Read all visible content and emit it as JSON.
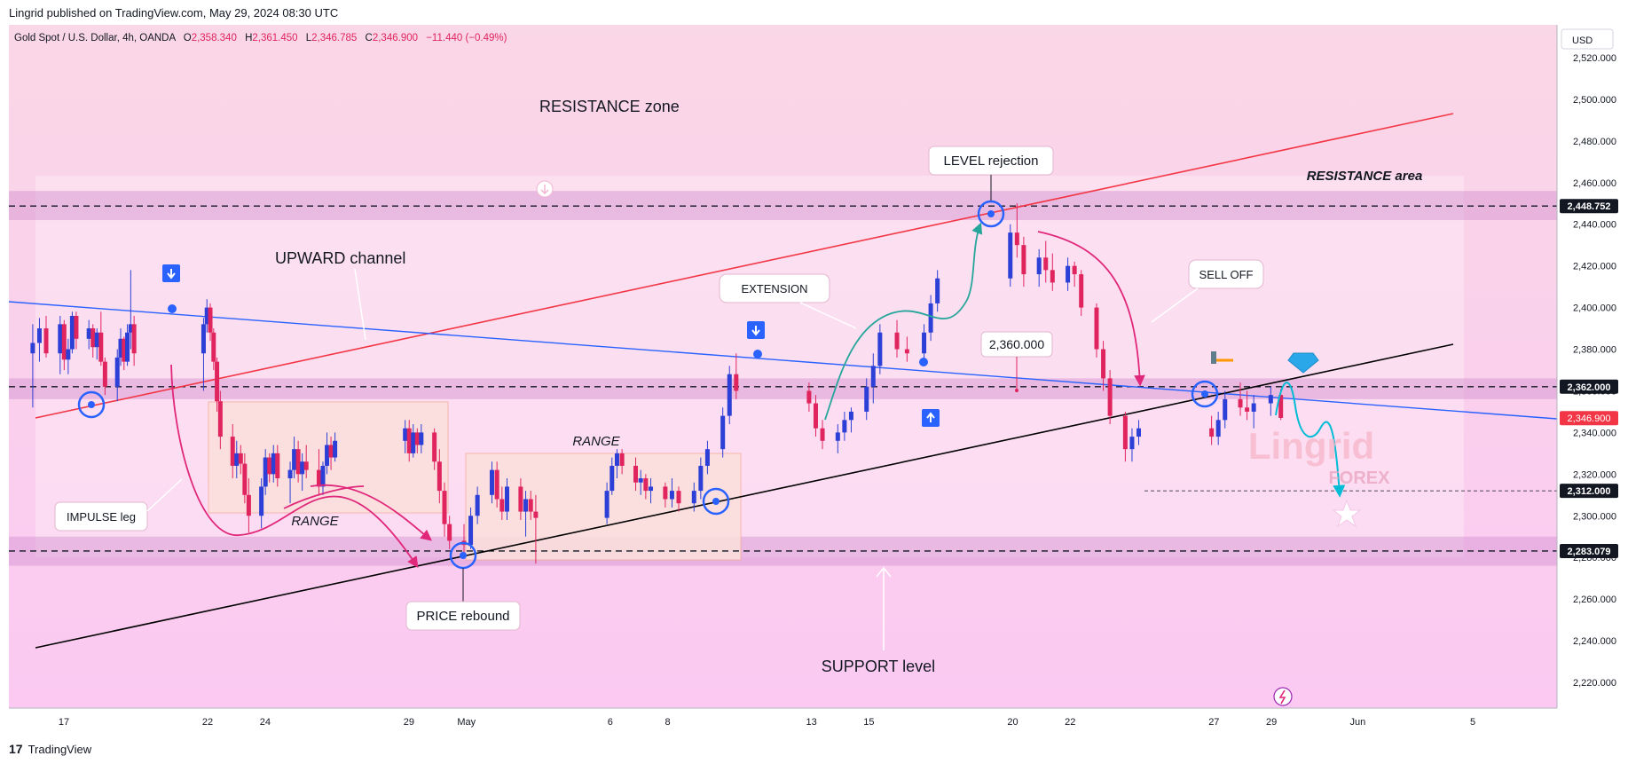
{
  "header": {
    "published": "Lingrid published on TradingView.com, May 29, 2024 08:30 UTC"
  },
  "footer": {
    "logo_glyph": "17",
    "brand": "TradingView"
  },
  "symbol": {
    "name": "Gold Spot / U.S. Dollar, 4h, OANDA",
    "open_label": "O",
    "open": "2,358.340",
    "high_label": "H",
    "high": "2,361.450",
    "low_label": "L",
    "low": "2,346.785",
    "close_label": "C",
    "close": "2,346.900",
    "change": "−11.440 (−0.49%)"
  },
  "currency": "USD",
  "watermark": {
    "brand": "Lingrid",
    "sub": "FOREX"
  },
  "colors": {
    "bull": "#2c3fd6",
    "bear": "#e0245e",
    "resistance_line": "#f23645",
    "support_line": "#000000",
    "channel_line": "#2962ff",
    "zone": "#d99bd6",
    "price_tag_bg": "#f23645",
    "level_tag_bg": "#131722",
    "arrow_pink": "#e0277a",
    "arrow_green": "#26a69a",
    "arrow_cyan": "#00bcd4"
  },
  "chart_data": {
    "type": "candlestick",
    "title": "Gold Spot / U.S. Dollar, 4h, OANDA",
    "timeframe": "4h",
    "ylim": [
      2200,
      2540
    ],
    "y_ticks": [
      2220,
      2240,
      2260,
      2280,
      2300,
      2320,
      2340,
      2360,
      2380,
      2400,
      2420,
      2440,
      2460,
      2480,
      2500,
      2520
    ],
    "y_tick_labels": [
      "2,220.000",
      "2,240.000",
      "2,260.000",
      "2,280.000",
      "2,300.000",
      "2,320.000",
      "2,340.000",
      "2,360.000",
      "2,380.000",
      "2,400.000",
      "2,420.000",
      "2,440.000",
      "2,460.000",
      "2,480.000",
      "2,500.000",
      "2,520.000"
    ],
    "x_labels": [
      {
        "label": "17",
        "date": "2024-04-17"
      },
      {
        "label": "22",
        "date": "2024-04-22"
      },
      {
        "label": "24",
        "date": "2024-04-24"
      },
      {
        "label": "29",
        "date": "2024-04-29"
      },
      {
        "label": "May",
        "date": "2024-05-01"
      },
      {
        "label": "6",
        "date": "2024-05-06"
      },
      {
        "label": "8",
        "date": "2024-05-08"
      },
      {
        "label": "13",
        "date": "2024-05-13"
      },
      {
        "label": "15",
        "date": "2024-05-15"
      },
      {
        "label": "20",
        "date": "2024-05-20"
      },
      {
        "label": "22",
        "date": "2024-05-22"
      },
      {
        "label": "27",
        "date": "2024-05-27"
      },
      {
        "label": "29",
        "date": "2024-05-29"
      },
      {
        "label": "Jun",
        "date": "2024-06-01"
      },
      {
        "label": "5",
        "date": "2024-06-05"
      }
    ],
    "price_levels": [
      {
        "value": 2448.752,
        "label": "2,448.752"
      },
      {
        "value": 2362.0,
        "label": "2,362.000"
      },
      {
        "value": 2312.0,
        "label": "2,312.000"
      },
      {
        "value": 2283.079,
        "label": "2,283.079"
      }
    ],
    "last_price": {
      "value": 2346.9,
      "label": "2,346.900"
    },
    "zones": [
      {
        "name": "RESISTANCE zone band",
        "from": 2442,
        "to": 2456
      },
      {
        "name": "mid band",
        "from": 2356,
        "to": 2366
      },
      {
        "name": "SUPPORT band",
        "from": 2276,
        "to": 2290
      }
    ],
    "annotations": [
      "RESISTANCE zone",
      "UPWARD channel",
      "IMPULSE leg",
      "RANGE",
      "PRICE rebound",
      "RANGE",
      "EXTENSION",
      "LEVEL rejection",
      "2,360.000",
      "SELL OFF",
      "RESISTANCE area",
      "SUPPORT level"
    ],
    "candles": [
      {
        "date": "2024-04-16",
        "o": 2378,
        "h": 2392,
        "l": 2352,
        "c": 2383
      },
      {
        "date": "2024-04-16",
        "o": 2383,
        "h": 2395,
        "l": 2374,
        "c": 2390
      },
      {
        "date": "2024-04-16",
        "o": 2390,
        "h": 2396,
        "l": 2376,
        "c": 2378
      },
      {
        "date": "2024-04-17",
        "o": 2378,
        "h": 2396,
        "l": 2368,
        "c": 2392
      },
      {
        "date": "2024-04-17",
        "o": 2392,
        "h": 2394,
        "l": 2370,
        "c": 2375
      },
      {
        "date": "2024-04-17",
        "o": 2375,
        "h": 2385,
        "l": 2368,
        "c": 2380
      },
      {
        "date": "2024-04-17",
        "o": 2380,
        "h": 2398,
        "l": 2378,
        "c": 2396
      },
      {
        "date": "2024-04-17",
        "o": 2396,
        "h": 2398,
        "l": 2380,
        "c": 2385
      },
      {
        "date": "2024-04-18",
        "o": 2385,
        "h": 2394,
        "l": 2380,
        "c": 2390
      },
      {
        "date": "2024-04-18",
        "o": 2390,
        "h": 2392,
        "l": 2376,
        "c": 2381
      },
      {
        "date": "2024-04-18",
        "o": 2381,
        "h": 2390,
        "l": 2375,
        "c": 2388
      },
      {
        "date": "2024-04-18",
        "o": 2388,
        "h": 2398,
        "l": 2372,
        "c": 2374
      },
      {
        "date": "2024-04-18",
        "o": 2374,
        "h": 2376,
        "l": 2358,
        "c": 2362
      },
      {
        "date": "2024-04-19",
        "o": 2362,
        "h": 2380,
        "l": 2355,
        "c": 2376
      },
      {
        "date": "2024-04-19",
        "o": 2376,
        "h": 2390,
        "l": 2372,
        "c": 2385
      },
      {
        "date": "2024-04-19",
        "o": 2385,
        "h": 2386,
        "l": 2370,
        "c": 2374
      },
      {
        "date": "2024-04-19",
        "o": 2374,
        "h": 2392,
        "l": 2372,
        "c": 2388
      },
      {
        "date": "2024-04-19",
        "o": 2388,
        "h": 2418,
        "l": 2380,
        "c": 2392
      },
      {
        "date": "2024-04-19",
        "o": 2392,
        "h": 2396,
        "l": 2372,
        "c": 2378
      },
      {
        "date": "2024-04-22",
        "o": 2378,
        "h": 2395,
        "l": 2360,
        "c": 2392
      },
      {
        "date": "2024-04-22",
        "o": 2392,
        "h": 2404,
        "l": 2388,
        "c": 2400
      },
      {
        "date": "2024-04-22",
        "o": 2400,
        "h": 2402,
        "l": 2384,
        "c": 2388
      },
      {
        "date": "2024-04-22",
        "o": 2388,
        "h": 2390,
        "l": 2370,
        "c": 2374
      },
      {
        "date": "2024-04-22",
        "o": 2374,
        "h": 2376,
        "l": 2350,
        "c": 2355
      },
      {
        "date": "2024-04-22",
        "o": 2355,
        "h": 2360,
        "l": 2332,
        "c": 2338
      },
      {
        "date": "2024-04-23",
        "o": 2338,
        "h": 2344,
        "l": 2318,
        "c": 2324
      },
      {
        "date": "2024-04-23",
        "o": 2324,
        "h": 2336,
        "l": 2318,
        "c": 2330
      },
      {
        "date": "2024-04-23",
        "o": 2330,
        "h": 2334,
        "l": 2320,
        "c": 2325
      },
      {
        "date": "2024-04-23",
        "o": 2325,
        "h": 2330,
        "l": 2306,
        "c": 2310
      },
      {
        "date": "2024-04-23",
        "o": 2310,
        "h": 2318,
        "l": 2292,
        "c": 2300
      },
      {
        "date": "2024-04-24",
        "o": 2300,
        "h": 2318,
        "l": 2294,
        "c": 2314
      },
      {
        "date": "2024-04-24",
        "o": 2314,
        "h": 2332,
        "l": 2310,
        "c": 2328
      },
      {
        "date": "2024-04-24",
        "o": 2328,
        "h": 2330,
        "l": 2316,
        "c": 2320
      },
      {
        "date": "2024-04-24",
        "o": 2320,
        "h": 2334,
        "l": 2316,
        "c": 2330
      },
      {
        "date": "2024-04-24",
        "o": 2330,
        "h": 2334,
        "l": 2314,
        "c": 2318
      },
      {
        "date": "2024-04-25",
        "o": 2318,
        "h": 2326,
        "l": 2306,
        "c": 2322
      },
      {
        "date": "2024-04-25",
        "o": 2322,
        "h": 2338,
        "l": 2318,
        "c": 2332
      },
      {
        "date": "2024-04-25",
        "o": 2332,
        "h": 2336,
        "l": 2316,
        "c": 2320
      },
      {
        "date": "2024-04-25",
        "o": 2320,
        "h": 2330,
        "l": 2312,
        "c": 2326
      },
      {
        "date": "2024-04-25",
        "o": 2326,
        "h": 2334,
        "l": 2318,
        "c": 2322
      },
      {
        "date": "2024-04-26",
        "o": 2322,
        "h": 2332,
        "l": 2310,
        "c": 2314
      },
      {
        "date": "2024-04-26",
        "o": 2314,
        "h": 2326,
        "l": 2310,
        "c": 2324
      },
      {
        "date": "2024-04-26",
        "o": 2324,
        "h": 2340,
        "l": 2320,
        "c": 2334
      },
      {
        "date": "2024-04-26",
        "o": 2334,
        "h": 2338,
        "l": 2322,
        "c": 2328
      },
      {
        "date": "2024-04-26",
        "o": 2328,
        "h": 2340,
        "l": 2326,
        "c": 2336
      },
      {
        "date": "2024-04-29",
        "o": 2336,
        "h": 2346,
        "l": 2330,
        "c": 2342
      },
      {
        "date": "2024-04-29",
        "o": 2342,
        "h": 2346,
        "l": 2326,
        "c": 2330
      },
      {
        "date": "2024-04-29",
        "o": 2330,
        "h": 2344,
        "l": 2328,
        "c": 2340
      },
      {
        "date": "2024-04-29",
        "o": 2340,
        "h": 2342,
        "l": 2330,
        "c": 2334
      },
      {
        "date": "2024-04-29",
        "o": 2334,
        "h": 2344,
        "l": 2330,
        "c": 2340
      },
      {
        "date": "2024-04-30",
        "o": 2340,
        "h": 2342,
        "l": 2322,
        "c": 2326
      },
      {
        "date": "2024-04-30",
        "o": 2326,
        "h": 2332,
        "l": 2306,
        "c": 2312
      },
      {
        "date": "2024-04-30",
        "o": 2312,
        "h": 2316,
        "l": 2290,
        "c": 2296
      },
      {
        "date": "2024-04-30",
        "o": 2296,
        "h": 2300,
        "l": 2284,
        "c": 2288
      },
      {
        "date": "2024-05-01",
        "o": 2288,
        "h": 2296,
        "l": 2282,
        "c": 2286
      },
      {
        "date": "2024-05-01",
        "o": 2286,
        "h": 2304,
        "l": 2284,
        "c": 2300
      },
      {
        "date": "2024-05-01",
        "o": 2300,
        "h": 2314,
        "l": 2296,
        "c": 2310
      },
      {
        "date": "2024-05-02",
        "o": 2310,
        "h": 2326,
        "l": 2306,
        "c": 2322
      },
      {
        "date": "2024-05-02",
        "o": 2322,
        "h": 2326,
        "l": 2304,
        "c": 2308
      },
      {
        "date": "2024-05-02",
        "o": 2308,
        "h": 2314,
        "l": 2298,
        "c": 2302
      },
      {
        "date": "2024-05-02",
        "o": 2302,
        "h": 2318,
        "l": 2298,
        "c": 2314
      },
      {
        "date": "2024-05-03",
        "o": 2314,
        "h": 2318,
        "l": 2298,
        "c": 2302
      },
      {
        "date": "2024-05-03",
        "o": 2302,
        "h": 2312,
        "l": 2290,
        "c": 2308
      },
      {
        "date": "2024-05-03",
        "o": 2308,
        "h": 2312,
        "l": 2298,
        "c": 2302
      },
      {
        "date": "2024-05-03",
        "o": 2302,
        "h": 2310,
        "l": 2277,
        "c": 2299
      },
      {
        "date": "2024-05-06",
        "o": 2299,
        "h": 2316,
        "l": 2296,
        "c": 2312
      },
      {
        "date": "2024-05-06",
        "o": 2312,
        "h": 2328,
        "l": 2310,
        "c": 2324
      },
      {
        "date": "2024-05-06",
        "o": 2324,
        "h": 2332,
        "l": 2318,
        "c": 2330
      },
      {
        "date": "2024-05-06",
        "o": 2330,
        "h": 2332,
        "l": 2320,
        "c": 2324
      },
      {
        "date": "2024-05-07",
        "o": 2324,
        "h": 2328,
        "l": 2312,
        "c": 2316
      },
      {
        "date": "2024-05-07",
        "o": 2316,
        "h": 2322,
        "l": 2310,
        "c": 2318
      },
      {
        "date": "2024-05-07",
        "o": 2318,
        "h": 2320,
        "l": 2308,
        "c": 2312
      },
      {
        "date": "2024-05-07",
        "o": 2312,
        "h": 2318,
        "l": 2306,
        "c": 2314
      },
      {
        "date": "2024-05-08",
        "o": 2314,
        "h": 2316,
        "l": 2304,
        "c": 2308
      },
      {
        "date": "2024-05-08",
        "o": 2308,
        "h": 2318,
        "l": 2304,
        "c": 2312
      },
      {
        "date": "2024-05-08",
        "o": 2312,
        "h": 2314,
        "l": 2302,
        "c": 2306
      },
      {
        "date": "2024-05-09",
        "o": 2306,
        "h": 2316,
        "l": 2302,
        "c": 2312
      },
      {
        "date": "2024-05-09",
        "o": 2312,
        "h": 2328,
        "l": 2308,
        "c": 2324
      },
      {
        "date": "2024-05-09",
        "o": 2324,
        "h": 2336,
        "l": 2320,
        "c": 2332
      },
      {
        "date": "2024-05-10",
        "o": 2332,
        "h": 2352,
        "l": 2328,
        "c": 2348
      },
      {
        "date": "2024-05-10",
        "o": 2348,
        "h": 2372,
        "l": 2344,
        "c": 2368
      },
      {
        "date": "2024-05-10",
        "o": 2368,
        "h": 2378,
        "l": 2356,
        "c": 2360
      },
      {
        "date": "2024-05-13",
        "o": 2360,
        "h": 2364,
        "l": 2350,
        "c": 2354
      },
      {
        "date": "2024-05-13",
        "o": 2354,
        "h": 2358,
        "l": 2338,
        "c": 2342
      },
      {
        "date": "2024-05-13",
        "o": 2342,
        "h": 2346,
        "l": 2332,
        "c": 2336
      },
      {
        "date": "2024-05-14",
        "o": 2336,
        "h": 2344,
        "l": 2330,
        "c": 2340
      },
      {
        "date": "2024-05-14",
        "o": 2340,
        "h": 2350,
        "l": 2336,
        "c": 2346
      },
      {
        "date": "2024-05-14",
        "o": 2346,
        "h": 2352,
        "l": 2340,
        "c": 2350
      },
      {
        "date": "2024-05-15",
        "o": 2350,
        "h": 2366,
        "l": 2346,
        "c": 2362
      },
      {
        "date": "2024-05-15",
        "o": 2362,
        "h": 2378,
        "l": 2354,
        "c": 2372
      },
      {
        "date": "2024-05-15",
        "o": 2372,
        "h": 2392,
        "l": 2368,
        "c": 2388
      },
      {
        "date": "2024-05-16",
        "o": 2388,
        "h": 2394,
        "l": 2376,
        "c": 2380
      },
      {
        "date": "2024-05-16",
        "o": 2380,
        "h": 2386,
        "l": 2374,
        "c": 2378
      },
      {
        "date": "2024-05-17",
        "o": 2378,
        "h": 2392,
        "l": 2374,
        "c": 2388
      },
      {
        "date": "2024-05-17",
        "o": 2388,
        "h": 2406,
        "l": 2384,
        "c": 2402
      },
      {
        "date": "2024-05-17",
        "o": 2402,
        "h": 2418,
        "l": 2398,
        "c": 2414
      },
      {
        "date": "2024-05-20",
        "o": 2414,
        "h": 2440,
        "l": 2410,
        "c": 2436
      },
      {
        "date": "2024-05-20",
        "o": 2436,
        "h": 2450,
        "l": 2424,
        "c": 2430
      },
      {
        "date": "2024-05-20",
        "o": 2430,
        "h": 2434,
        "l": 2410,
        "c": 2416
      },
      {
        "date": "2024-05-21",
        "o": 2416,
        "h": 2428,
        "l": 2410,
        "c": 2424
      },
      {
        "date": "2024-05-21",
        "o": 2424,
        "h": 2432,
        "l": 2412,
        "c": 2418
      },
      {
        "date": "2024-05-21",
        "o": 2418,
        "h": 2426,
        "l": 2408,
        "c": 2412
      },
      {
        "date": "2024-05-22",
        "o": 2412,
        "h": 2424,
        "l": 2408,
        "c": 2420
      },
      {
        "date": "2024-05-22",
        "o": 2420,
        "h": 2422,
        "l": 2410,
        "c": 2416
      },
      {
        "date": "2024-05-22",
        "o": 2416,
        "h": 2418,
        "l": 2396,
        "c": 2400
      },
      {
        "date": "2024-05-23",
        "o": 2400,
        "h": 2402,
        "l": 2376,
        "c": 2380
      },
      {
        "date": "2024-05-23",
        "o": 2380,
        "h": 2384,
        "l": 2360,
        "c": 2366
      },
      {
        "date": "2024-05-23",
        "o": 2366,
        "h": 2370,
        "l": 2344,
        "c": 2348
      },
      {
        "date": "2024-05-24",
        "o": 2348,
        "h": 2350,
        "l": 2326,
        "c": 2332
      },
      {
        "date": "2024-05-24",
        "o": 2332,
        "h": 2342,
        "l": 2326,
        "c": 2338
      },
      {
        "date": "2024-05-24",
        "o": 2338,
        "h": 2346,
        "l": 2334,
        "c": 2342
      },
      {
        "date": "2024-05-27",
        "o": 2342,
        "h": 2348,
        "l": 2334,
        "c": 2338
      },
      {
        "date": "2024-05-27",
        "o": 2338,
        "h": 2350,
        "l": 2334,
        "c": 2346
      },
      {
        "date": "2024-05-27",
        "o": 2346,
        "h": 2360,
        "l": 2342,
        "c": 2356
      },
      {
        "date": "2024-05-28",
        "o": 2356,
        "h": 2364,
        "l": 2348,
        "c": 2352
      },
      {
        "date": "2024-05-28",
        "o": 2352,
        "h": 2360,
        "l": 2346,
        "c": 2350
      },
      {
        "date": "2024-05-28",
        "o": 2350,
        "h": 2358,
        "l": 2342,
        "c": 2354
      },
      {
        "date": "2024-05-29",
        "o": 2354,
        "h": 2362,
        "l": 2348,
        "c": 2358
      },
      {
        "date": "2024-05-29",
        "o": 2358,
        "h": 2361,
        "l": 2346,
        "c": 2347
      }
    ]
  }
}
